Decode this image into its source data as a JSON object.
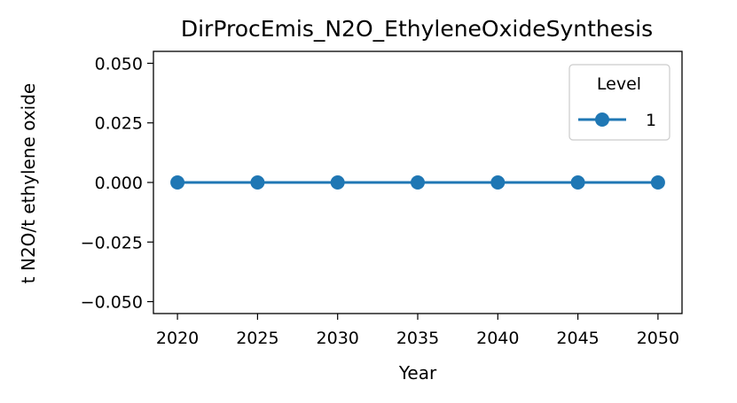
{
  "chart_data": {
    "type": "line",
    "title": "DirProcEmis_N2O_EthyleneOxideSynthesis",
    "xlabel": "Year",
    "ylabel": "t N2O/t ethylene oxide",
    "x": [
      2020,
      2025,
      2030,
      2035,
      2040,
      2045,
      2050
    ],
    "xticks": [
      "2020",
      "2025",
      "2030",
      "2035",
      "2040",
      "2045",
      "2050"
    ],
    "yticks": [
      "0.050",
      "0.025",
      "0.000",
      "−0.025",
      "−0.050"
    ],
    "ytick_values": [
      0.05,
      0.025,
      0.0,
      -0.025,
      -0.05
    ],
    "ylim": [
      -0.055,
      0.055
    ],
    "xlim": [
      2018.5,
      2051.5
    ],
    "series": [
      {
        "name": "1",
        "values": [
          0,
          0,
          0,
          0,
          0,
          0,
          0
        ],
        "color": "#1f77b4",
        "marker": "circle"
      }
    ],
    "legend": {
      "title": "Level",
      "position": "top-right"
    },
    "grid": false
  }
}
